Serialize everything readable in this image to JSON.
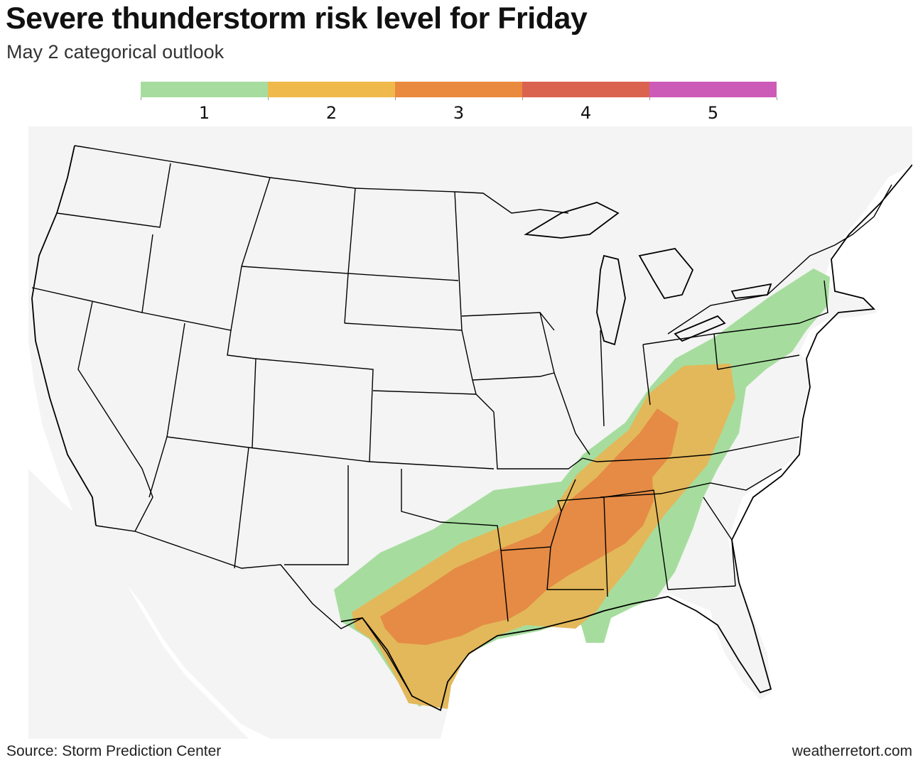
{
  "title": "Severe thunderstorm risk level for Friday",
  "subtitle": "May 2 categorical outlook",
  "legend": [
    {
      "label": "1",
      "color": "#a6dd9e"
    },
    {
      "label": "2",
      "color": "#f0b94b"
    },
    {
      "label": "3",
      "color": "#ea8a3e"
    },
    {
      "label": "4",
      "color": "#da6350"
    },
    {
      "label": "5",
      "color": "#cc5bb8"
    }
  ],
  "map": {
    "land_color": "#f4f4f4",
    "border_color": "#000000",
    "risk_colors": {
      "level1": "#a6dd9e",
      "level2": "#e3b85a",
      "level3": "#e58b45"
    }
  },
  "footer": {
    "source": "Source: Storm Prediction Center",
    "credit": "weatherretort.com"
  }
}
